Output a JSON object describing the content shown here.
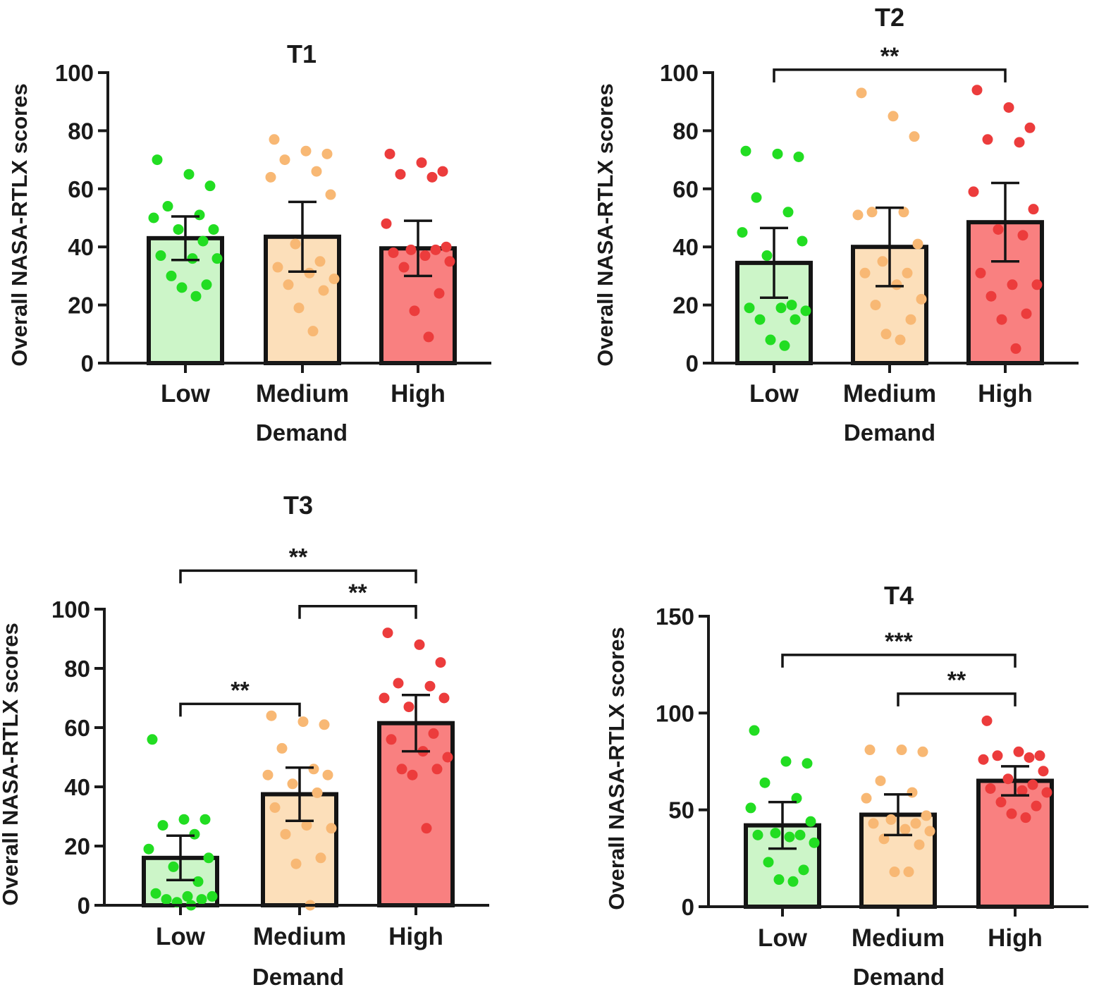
{
  "chart_data": [
    {
      "type": "bar",
      "title": "T1",
      "xlabel": "Demand",
      "ylabel": "Overall NASA-RTLX scores",
      "categories": [
        "Low",
        "Medium",
        "High"
      ],
      "values": [
        43,
        43.5,
        39.5
      ],
      "sem": [
        7.5,
        12,
        9.5
      ],
      "ylim": [
        0,
        100
      ],
      "yticks": [
        0,
        20,
        40,
        60,
        80,
        100
      ],
      "colors": [
        "#ccf5c8",
        "#fcdfba",
        "#f98080"
      ],
      "point_colors": [
        "#22dd22",
        "#f8b874",
        "#ec3c3c"
      ],
      "points": [
        [
          70,
          65,
          61,
          54,
          51,
          50,
          46,
          46,
          42,
          37,
          36,
          36,
          30,
          27,
          26,
          23
        ],
        [
          77,
          73,
          72,
          70,
          66,
          64,
          58,
          41,
          35,
          33,
          31,
          29,
          27,
          25,
          19,
          11
        ],
        [
          72,
          69,
          66,
          65,
          64,
          48,
          40,
          39,
          39,
          38,
          37,
          35,
          33,
          24,
          18,
          9
        ]
      ],
      "significance": []
    },
    {
      "type": "bar",
      "title": "T2",
      "xlabel": "Demand",
      "ylabel": "Overall NASA-RTLX scores",
      "categories": [
        "Low",
        "Medium",
        "High"
      ],
      "values": [
        34.5,
        40,
        48.5
      ],
      "sem": [
        12,
        13.5,
        13.5
      ],
      "ylim": [
        0,
        100
      ],
      "yticks": [
        0,
        20,
        40,
        60,
        80,
        100
      ],
      "colors": [
        "#ccf5c8",
        "#fcdfba",
        "#f98080"
      ],
      "point_colors": [
        "#22dd22",
        "#f8b874",
        "#ec3c3c"
      ],
      "points": [
        [
          73,
          72,
          71,
          57,
          52,
          45,
          42,
          37,
          20,
          19,
          19,
          18,
          15,
          15,
          8,
          6
        ],
        [
          93,
          85,
          78,
          52,
          52,
          51,
          41,
          35,
          31,
          31,
          27,
          22,
          20,
          15,
          10,
          8
        ],
        [
          94,
          88,
          81,
          77,
          76,
          59,
          53,
          46,
          44,
          31,
          27,
          27,
          23,
          17,
          15,
          5
        ]
      ],
      "significance": [
        {
          "from": 0,
          "to": 2,
          "label": "**",
          "y": 101
        }
      ]
    },
    {
      "type": "bar",
      "title": "T3",
      "xlabel": "Demand",
      "ylabel": "Overall NASA-RTLX scores",
      "categories": [
        "Low",
        "Medium",
        "High"
      ],
      "values": [
        16,
        37.5,
        61.5
      ],
      "sem": [
        7.5,
        9,
        9.5
      ],
      "ylim": [
        0,
        100
      ],
      "yticks": [
        0,
        20,
        40,
        60,
        80,
        100
      ],
      "colors": [
        "#ccf5c8",
        "#fcdfba",
        "#f98080"
      ],
      "point_colors": [
        "#22dd22",
        "#f8b874",
        "#ec3c3c"
      ],
      "points": [
        [
          56,
          29,
          29,
          27,
          24,
          19,
          16,
          13,
          8,
          4,
          3,
          3,
          2,
          2,
          1,
          0
        ],
        [
          64,
          62,
          61,
          53,
          46,
          44,
          44,
          41,
          38,
          33,
          27,
          26,
          24,
          16,
          14,
          0
        ],
        [
          92,
          88,
          82,
          75,
          74,
          70,
          70,
          67,
          58,
          56,
          52,
          50,
          46,
          46,
          44,
          26
        ]
      ],
      "significance": [
        {
          "from": 0,
          "to": 2,
          "label": "**",
          "y": 113
        },
        {
          "from": 1,
          "to": 2,
          "label": "**",
          "y": 101
        },
        {
          "from": 0,
          "to": 1,
          "label": "**",
          "y": 68
        }
      ]
    },
    {
      "type": "bar",
      "title": "T4",
      "xlabel": "Demand",
      "ylabel": "Overall NASA-RTLX scores",
      "categories": [
        "Low",
        "Medium",
        "High"
      ],
      "values": [
        42,
        47.5,
        65
      ],
      "sem": [
        12,
        10.5,
        7.5
      ],
      "ylim": [
        0,
        150
      ],
      "yticks": [
        0,
        50,
        100,
        150
      ],
      "colors": [
        "#ccf5c8",
        "#fcdfba",
        "#f98080"
      ],
      "point_colors": [
        "#22dd22",
        "#f8b874",
        "#ec3c3c"
      ],
      "points": [
        [
          91,
          75,
          74,
          64,
          56,
          51,
          44,
          38,
          37,
          37,
          36,
          33,
          23,
          19,
          14,
          13
        ],
        [
          81,
          81,
          80,
          65,
          59,
          56,
          47,
          45,
          43,
          43,
          40,
          39,
          35,
          32,
          18,
          18
        ],
        [
          96,
          80,
          78,
          78,
          77,
          76,
          70,
          66,
          63,
          61,
          60,
          59,
          54,
          52,
          48,
          46
        ]
      ],
      "significance": [
        {
          "from": 0,
          "to": 2,
          "label": "***",
          "y": 130
        },
        {
          "from": 1,
          "to": 2,
          "label": "**",
          "y": 110
        }
      ]
    }
  ]
}
